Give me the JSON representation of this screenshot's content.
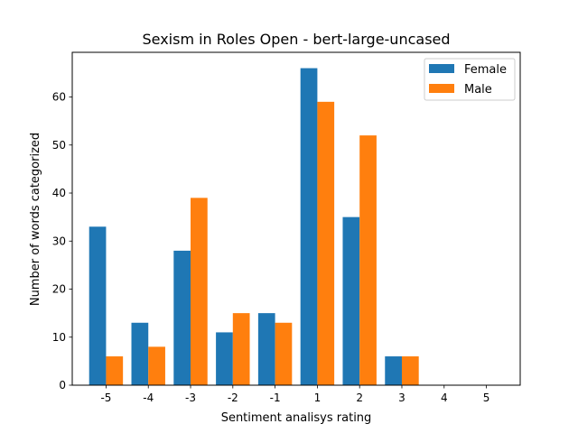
{
  "chart_data": {
    "type": "bar",
    "title": "Sexism in Roles Open - bert-large-uncased",
    "xlabel": "Sentiment analisys rating",
    "ylabel": "Number of words categorized",
    "categories": [
      "-5",
      "-4",
      "-3",
      "-2",
      "-1",
      "1",
      "2",
      "3",
      "4",
      "5"
    ],
    "series": [
      {
        "name": "Female",
        "color": "#1f77b4",
        "values": [
          33,
          13,
          28,
          11,
          15,
          66,
          35,
          6,
          0,
          0
        ]
      },
      {
        "name": "Male",
        "color": "#ff7f0e",
        "values": [
          6,
          8,
          39,
          15,
          13,
          59,
          52,
          6,
          0,
          0
        ]
      }
    ],
    "ylim": [
      0,
      69.3
    ],
    "yticks": [
      0,
      10,
      20,
      30,
      40,
      50,
      60
    ],
    "grid": false,
    "legend_position": "top-right"
  }
}
